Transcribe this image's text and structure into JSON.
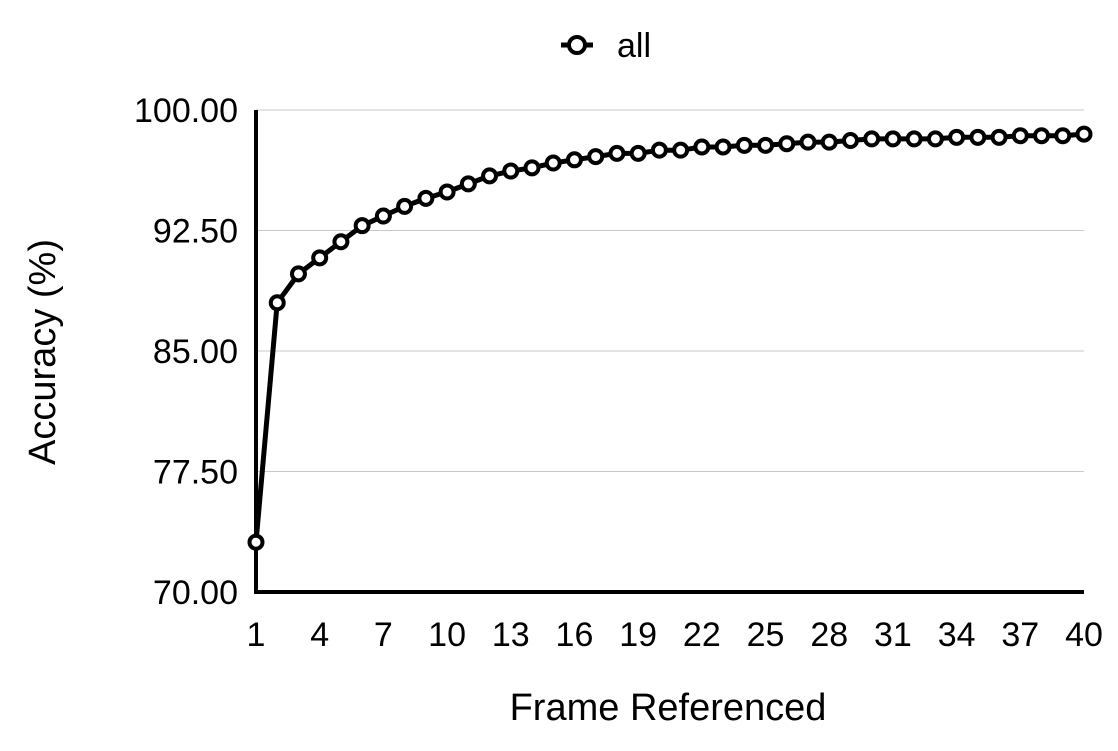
{
  "chart_data": {
    "type": "line",
    "xlabel": "Frame Referenced",
    "ylabel": "Accuracy (%)",
    "ylim": [
      70,
      100
    ],
    "yticks": [
      "70.00",
      "77.50",
      "85.00",
      "92.50",
      "100.00"
    ],
    "ytick_values": [
      70,
      77.5,
      85,
      92.5,
      100
    ],
    "xlim": [
      1,
      40
    ],
    "xticks": [
      "1",
      "4",
      "7",
      "10",
      "13",
      "16",
      "19",
      "22",
      "25",
      "28",
      "31",
      "34",
      "37",
      "40"
    ],
    "xtick_values": [
      1,
      4,
      7,
      10,
      13,
      16,
      19,
      22,
      25,
      28,
      31,
      34,
      37,
      40
    ],
    "grid": "horizontal",
    "legend_position": "top-center",
    "x": [
      1,
      2,
      3,
      4,
      5,
      6,
      7,
      8,
      9,
      10,
      11,
      12,
      13,
      14,
      15,
      16,
      17,
      18,
      19,
      20,
      21,
      22,
      23,
      24,
      25,
      26,
      27,
      28,
      29,
      30,
      31,
      32,
      33,
      34,
      35,
      36,
      37,
      38,
      39,
      40
    ],
    "series": [
      {
        "name": "all",
        "color": "#000000",
        "marker": "hollow-circle",
        "values": [
          73.1,
          88.0,
          89.8,
          90.8,
          91.8,
          92.8,
          93.4,
          94.0,
          94.5,
          94.9,
          95.4,
          95.9,
          96.2,
          96.4,
          96.7,
          96.9,
          97.1,
          97.3,
          97.3,
          97.5,
          97.5,
          97.7,
          97.7,
          97.8,
          97.8,
          97.9,
          98.0,
          98.0,
          98.1,
          98.2,
          98.2,
          98.2,
          98.2,
          98.3,
          98.3,
          98.3,
          98.4,
          98.4,
          98.4,
          98.5
        ]
      }
    ]
  }
}
